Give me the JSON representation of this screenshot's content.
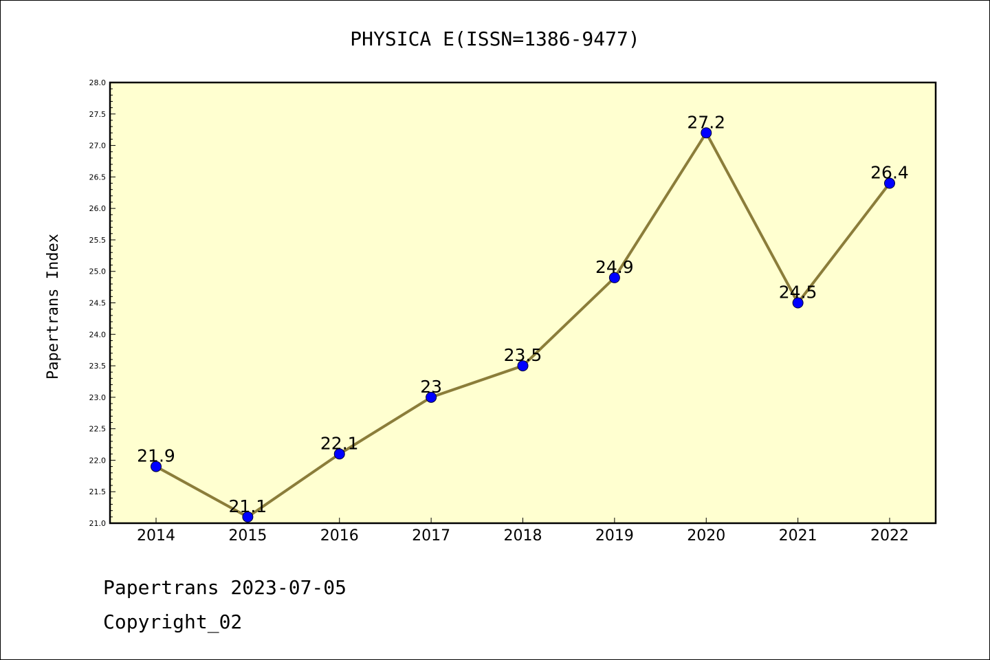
{
  "chart_data": {
    "type": "line",
    "title": "PHYSICA E(ISSN=1386-9477)",
    "ylabel": "Papertrans Index",
    "xlabel": "",
    "categories": [
      "2014",
      "2015",
      "2016",
      "2017",
      "2018",
      "2019",
      "2020",
      "2021",
      "2022"
    ],
    "series": [
      {
        "values": [
          21.9,
          21.1,
          22.1,
          23.0,
          23.5,
          24.9,
          27.2,
          24.5,
          26.4
        ],
        "labels": [
          "21.9",
          "21.1",
          "22.1",
          "23",
          "23.5",
          "24.9",
          "27.2",
          "24.5",
          "26.4"
        ],
        "line_color": "#8b7d3a",
        "marker_color": "#0000ff"
      }
    ],
    "ylim": [
      21.0,
      28.0
    ],
    "yticks": [
      "21.0",
      "21.5",
      "22.0",
      "22.5",
      "23.0",
      "23.5",
      "24.0",
      "24.5",
      "25.0",
      "25.5",
      "26.0",
      "26.5",
      "27.0",
      "27.5",
      "28.0"
    ],
    "plot_background": "#ffffd0",
    "grid": false,
    "legend": "none"
  },
  "footer": {
    "line1": "Papertrans 2023-07-05",
    "line2": "Copyright_02"
  }
}
